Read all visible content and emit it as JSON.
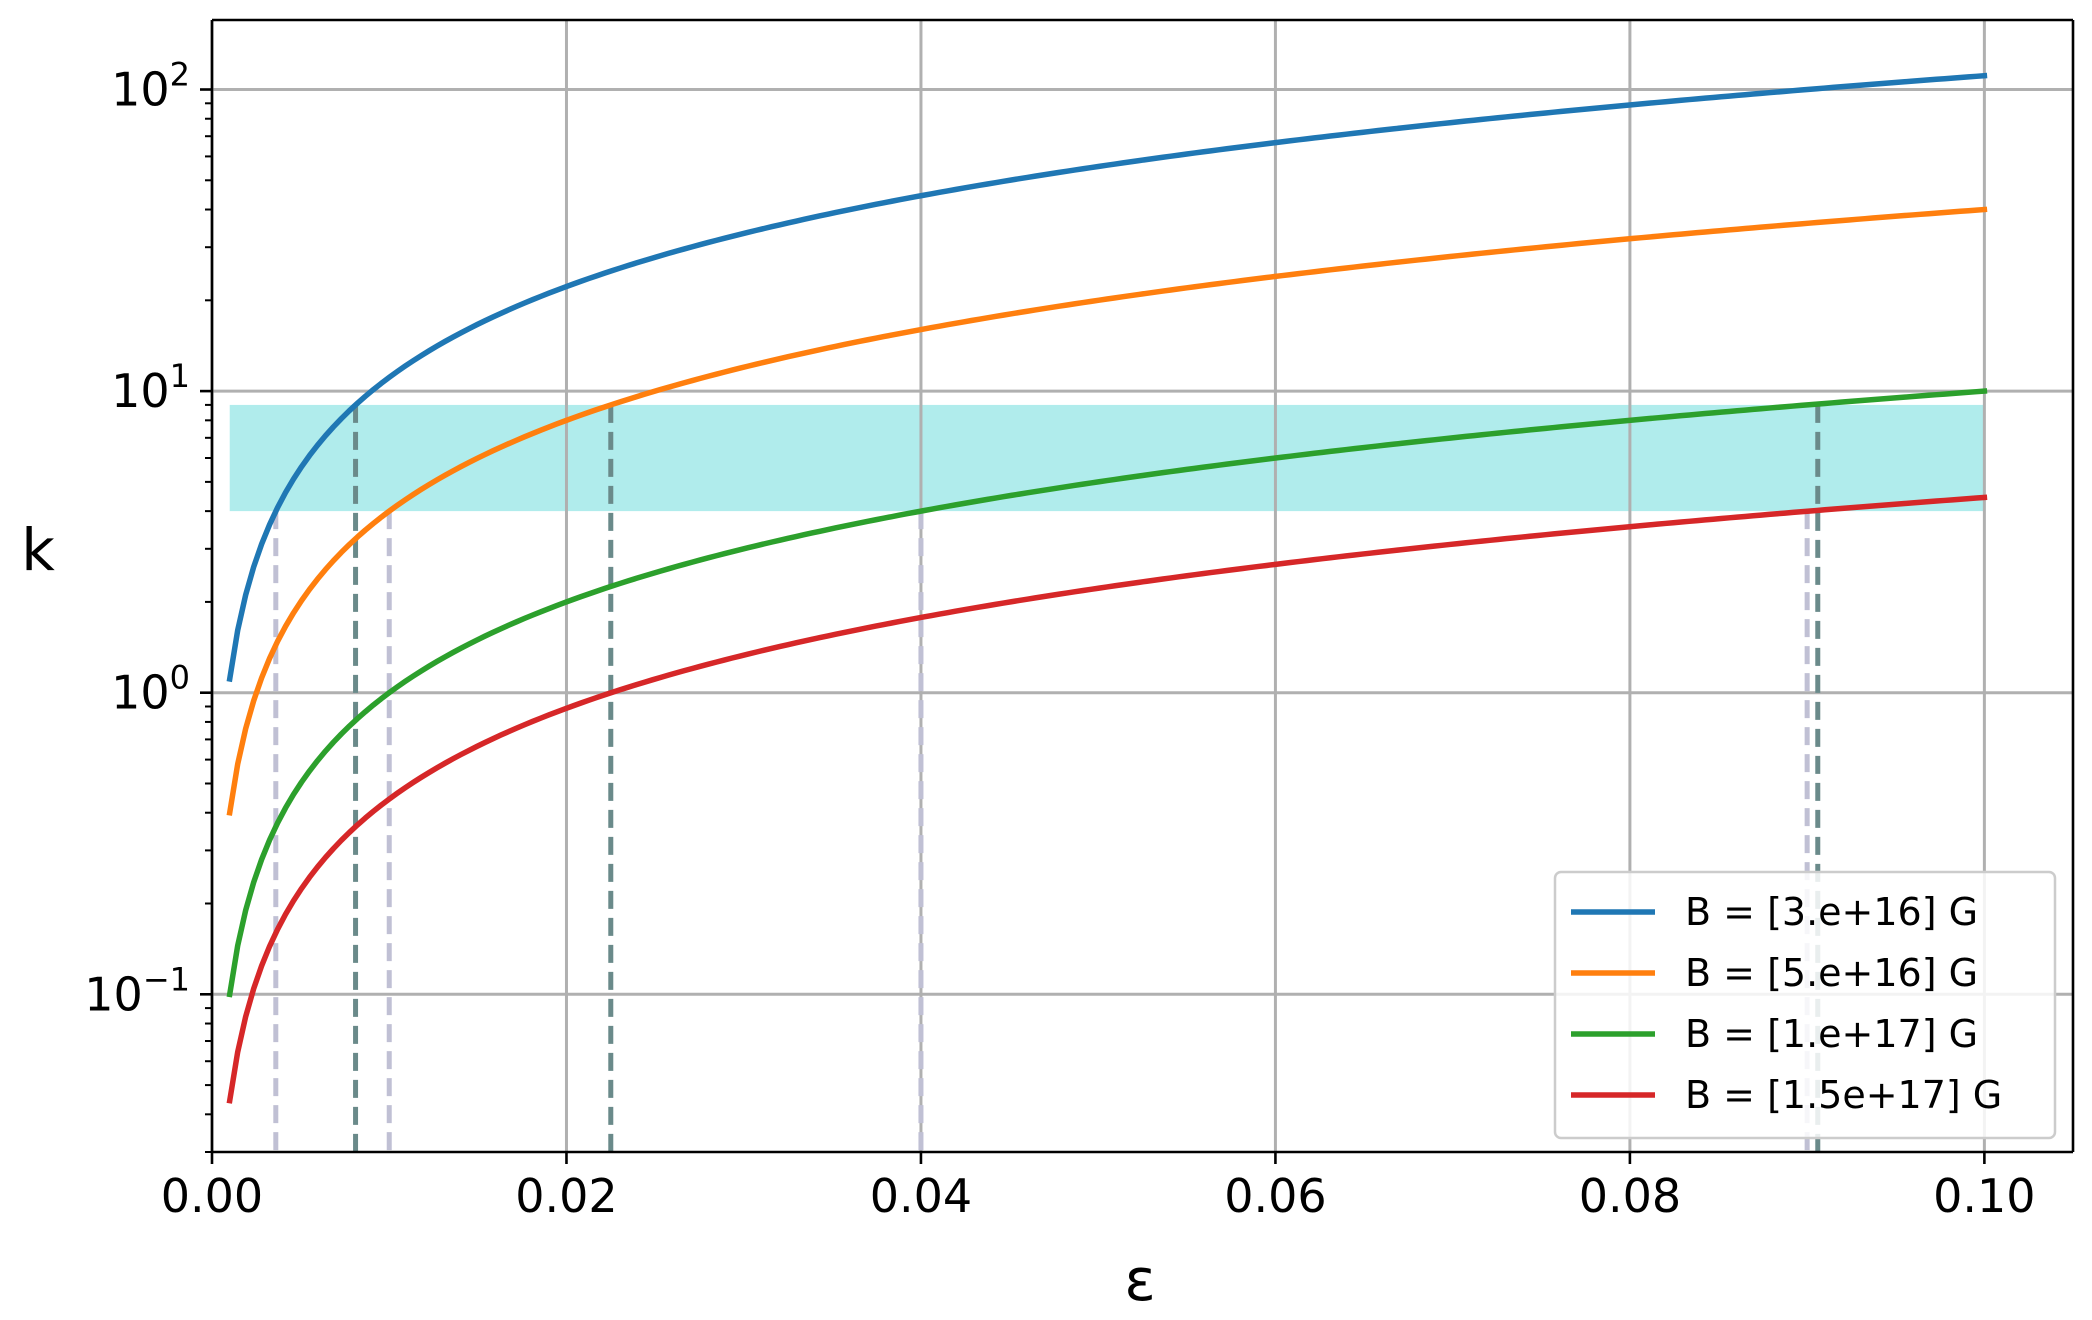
{
  "chart_data": {
    "type": "line",
    "title": "",
    "xlabel": "ε",
    "ylabel": "k",
    "x_scale": "linear",
    "y_scale": "log",
    "xlim": [
      0.0,
      0.105
    ],
    "ylim": [
      0.03,
      170
    ],
    "grid": true,
    "x_ticks": [
      {
        "value": 0.0,
        "label": "0.00"
      },
      {
        "value": 0.02,
        "label": "0.02"
      },
      {
        "value": 0.04,
        "label": "0.04"
      },
      {
        "value": 0.06,
        "label": "0.06"
      },
      {
        "value": 0.08,
        "label": "0.08"
      },
      {
        "value": 0.1,
        "label": "0.10"
      }
    ],
    "y_ticks": [
      {
        "value": 0.1,
        "base": "10",
        "exp": "−1"
      },
      {
        "value": 1,
        "base": "10",
        "exp": "0"
      },
      {
        "value": 10,
        "base": "10",
        "exp": "1"
      },
      {
        "value": 100,
        "base": "10",
        "exp": "2"
      }
    ],
    "shaded_band": {
      "y_min": 4.0,
      "y_max": 9.0,
      "color": "#b0ecec"
    },
    "legend_position": "lower-right",
    "series": [
      {
        "name": "B = [3.e+16] G",
        "color": "#1f77b4",
        "coef": 1111,
        "x_range": [
          0.001,
          0.1
        ]
      },
      {
        "name": "B = [5.e+16] G",
        "color": "#ff7f0e",
        "coef": 400,
        "x_range": [
          0.001,
          0.1
        ]
      },
      {
        "name": "B = [1.e+17] G",
        "color": "#2ca02c",
        "coef": 100,
        "x_range": [
          0.001,
          0.1
        ]
      },
      {
        "name": "B = [1.5e+17] G",
        "color": "#d62728",
        "coef": 44.4,
        "x_range": [
          0.001,
          0.1
        ]
      }
    ],
    "vertical_markers": [
      {
        "x": 0.0036,
        "y_top": 4.0,
        "color": "#c0c0d4"
      },
      {
        "x": 0.0081,
        "y_top": 9.0,
        "color": "#6a8a8a"
      },
      {
        "x": 0.01,
        "y_top": 4.0,
        "color": "#c0c0d4"
      },
      {
        "x": 0.0225,
        "y_top": 9.0,
        "color": "#6a8a8a"
      },
      {
        "x": 0.04,
        "y_top": 4.0,
        "color": "#c0c0d4"
      },
      {
        "x": 0.09,
        "y_top": 4.0,
        "color": "#c0c0d4"
      },
      {
        "x": 0.0906,
        "y_top": 9.0,
        "color": "#6a8a8a"
      }
    ]
  }
}
